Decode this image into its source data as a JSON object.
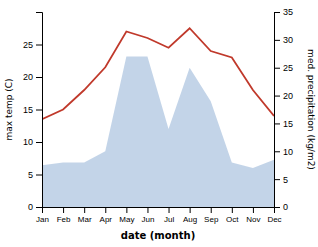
{
  "chart_data": {
    "type": "line",
    "xlabel": "date (month)",
    "ylabel": "max temp (C)",
    "y2label": "med. precipitation (kg/m2)",
    "categories": [
      "Jan",
      "Feb",
      "Mar",
      "Apr",
      "May",
      "Jun",
      "Jul",
      "Aug",
      "Sep",
      "Oct",
      "Nov",
      "Dec"
    ],
    "series": [
      {
        "type": "area",
        "axis": "y2",
        "color": "#b8cce4",
        "values": [
          7.5,
          8.0,
          8.0,
          10.0,
          27.0,
          27.0,
          14.0,
          25.0,
          19.0,
          8.0,
          7.0,
          8.5
        ]
      },
      {
        "type": "line",
        "color": "#c0392b",
        "values": [
          13.5,
          15.0,
          18.0,
          21.5,
          27.0,
          26.0,
          24.5,
          27.5,
          24.0,
          23.0,
          18.0,
          14.0
        ]
      }
    ],
    "ylim": [
      0,
      30
    ],
    "yticks": [
      0,
      5,
      10,
      15,
      20,
      25
    ],
    "y2lim": [
      0,
      35
    ],
    "y2ticks": [
      0,
      5,
      10,
      15,
      20,
      25,
      30,
      35
    ]
  }
}
